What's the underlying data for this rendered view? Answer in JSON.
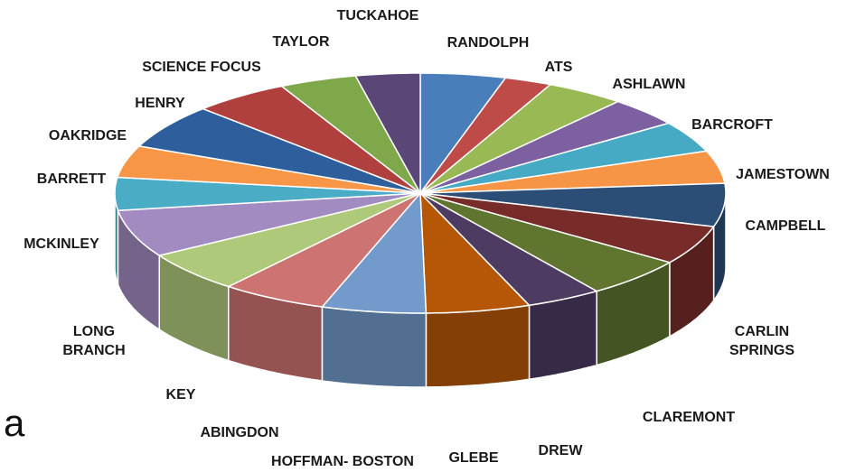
{
  "panel_label": "a",
  "chart_data": {
    "type": "pie",
    "style": "3d",
    "title": "",
    "legend": "none",
    "slices": [
      {
        "label": "RANDOLPH",
        "value": 4.5,
        "color": "#4a7ebb"
      },
      {
        "label": "ATS",
        "value": 2.5,
        "color": "#be4b48"
      },
      {
        "label": "ASHLAWN",
        "value": 4.2,
        "color": "#98b954"
      },
      {
        "label": "BARCROFT",
        "value": 3.9,
        "color": "#7d60a0"
      },
      {
        "label": "JAMESTOWN",
        "value": 4.2,
        "color": "#46aac5"
      },
      {
        "label": "CAMPBELL",
        "value": 4.4,
        "color": "#f69546"
      },
      {
        "label": "CARLIN SPRINGS",
        "value": 5.8,
        "color": "#2c4d75"
      },
      {
        "label": "CLAREMONT",
        "value": 5.3,
        "color": "#772c2a"
      },
      {
        "label": "DREW",
        "value": 5.4,
        "color": "#5f7530"
      },
      {
        "label": "GLEBE",
        "value": 4.0,
        "color": "#4d3b62"
      },
      {
        "label": "HOFFMAN- BOSTON",
        "value": 5.5,
        "color": "#b65708"
      },
      {
        "label": "ABINGDON",
        "value": 5.5,
        "color": "#729aca"
      },
      {
        "label": "KEY",
        "value": 5.6,
        "color": "#cd7371"
      },
      {
        "label": "LONG BRANCH",
        "value": 5.5,
        "color": "#afc97a"
      },
      {
        "label": "MCKINLEY",
        "value": 6.4,
        "color": "#a28bc0"
      },
      {
        "label": "BARRETT",
        "value": 4.4,
        "color": "#4bacc6"
      },
      {
        "label": "OAKRIDGE",
        "value": 4.3,
        "color": "#f79646"
      },
      {
        "label": "HENRY",
        "value": 6.0,
        "color": "#2e5e9b"
      },
      {
        "label": "SCIENCE FOCUS",
        "value": 5.1,
        "color": "#b0403e"
      },
      {
        "label": "TAYLOR",
        "value": 4.1,
        "color": "#7ea84a"
      },
      {
        "label": "TUCKAHOE",
        "value": 3.4,
        "color": "#5b4678"
      }
    ]
  }
}
